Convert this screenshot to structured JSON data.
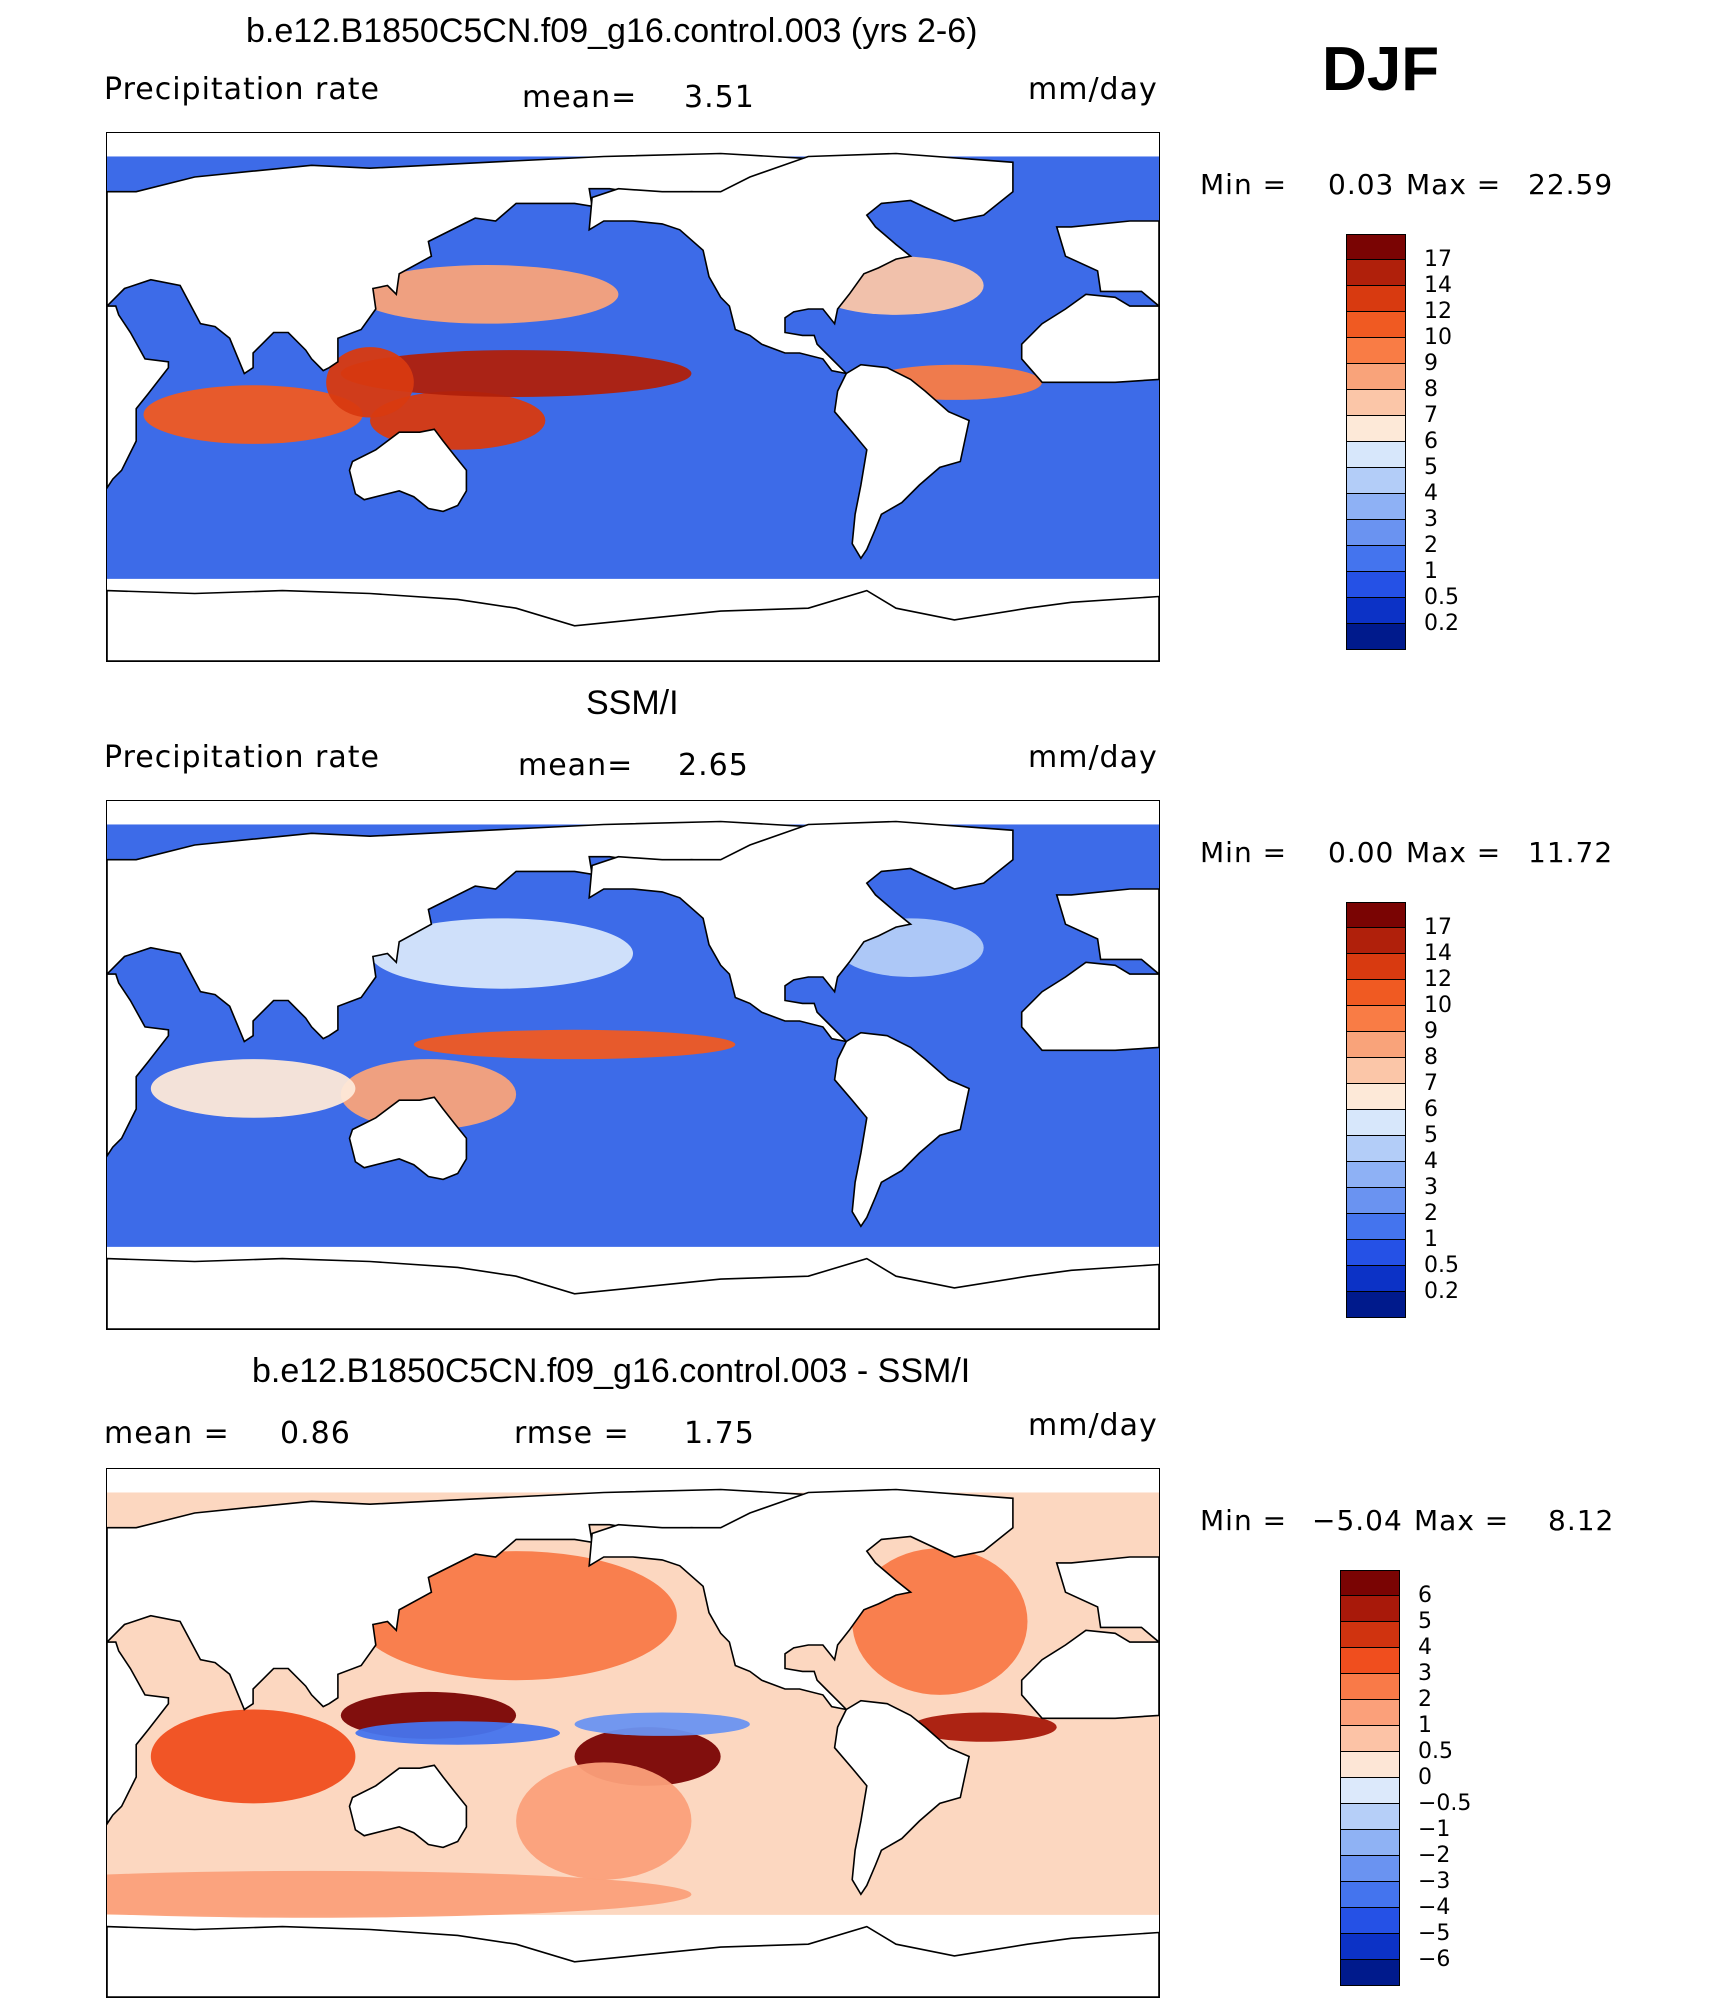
{
  "season": "DJF",
  "panels": [
    {
      "id": "model",
      "title": "b.e12.B1850C5CN.f09_g16.control.003 (yrs 2-6)",
      "left_label": "Precipitation  rate",
      "center_label": "mean=",
      "center_value": "3.51",
      "right_label": "mm/day",
      "min_label": "Min  =",
      "min_value": "0.03",
      "max_label": "Max  =",
      "max_value": "22.59"
    },
    {
      "id": "obs",
      "title": "SSM/I",
      "left_label": "Precipitation  rate",
      "center_label": "mean=",
      "center_value": "2.65",
      "right_label": "mm/day",
      "min_label": "Min  =",
      "min_value": "0.00",
      "max_label": "Max  =",
      "max_value": "11.72"
    },
    {
      "id": "diff",
      "title": "b.e12.B1850C5CN.f09_g16.control.003 - SSM/I",
      "left_label": "mean  =",
      "left_value": "0.86",
      "center_label": "rmse  =",
      "center_value": "1.75",
      "right_label": "mm/day",
      "min_label": "Min  =",
      "min_value": "−5.04",
      "max_label": "Max  =",
      "max_value": "8.12"
    }
  ],
  "colorbars": {
    "precip": {
      "levels": [
        "17",
        "14",
        "12",
        "10",
        "9",
        "8",
        "7",
        "6",
        "5",
        "4",
        "3",
        "2",
        "1",
        "0.5",
        "0.2"
      ],
      "colors": [
        "#7a0403",
        "#b0200b",
        "#d83a10",
        "#f05a22",
        "#f97c45",
        "#f9a37a",
        "#fbc6a8",
        "#fde9d8",
        "#d7e7fb",
        "#b3cdf8",
        "#8eb1f5",
        "#6a93f1",
        "#4474ee",
        "#2551e6",
        "#0c32c6",
        "#001a8c"
      ]
    },
    "diff": {
      "levels": [
        "6",
        "5",
        "4",
        "3",
        "2",
        "1",
        "0.5",
        "0",
        "−0.5",
        "−1",
        "−2",
        "−3",
        "−4",
        "−5",
        "−6"
      ],
      "colors": [
        "#7a0403",
        "#a8190a",
        "#d0330f",
        "#f04e1e",
        "#f97a48",
        "#fba07a",
        "#fcc3a6",
        "#fde6d6",
        "#dce9fb",
        "#b6cff8",
        "#8fb2f4",
        "#6a93f1",
        "#4474ee",
        "#2551e6",
        "#0c32c6",
        "#001a8c"
      ]
    }
  },
  "map_fields": {
    "model": [
      {
        "lon": 0,
        "lat": -2,
        "w": 70,
        "h": 14,
        "v": 9
      },
      {
        "lon": 80,
        "lat": -6,
        "w": 75,
        "h": 10,
        "v": 10
      },
      {
        "lon": 150,
        "lat": -8,
        "w": 60,
        "h": 10,
        "v": 12
      },
      {
        "lon": 170,
        "lat": 8,
        "w": 120,
        "h": 8,
        "v": 14
      },
      {
        "lon": 160,
        "lat": 35,
        "w": 90,
        "h": 10,
        "v": 8
      },
      {
        "lon": 300,
        "lat": 38,
        "w": 60,
        "h": 10,
        "v": 7
      },
      {
        "lon": 320,
        "lat": 5,
        "w": 60,
        "h": 6,
        "v": 9
      },
      {
        "lon": 120,
        "lat": 5,
        "w": 30,
        "h": 12,
        "v": 12
      }
    ],
    "obs": [
      {
        "lon": 140,
        "lat": -10,
        "w": 60,
        "h": 12,
        "v": 8
      },
      {
        "lon": 190,
        "lat": 7,
        "w": 110,
        "h": 5,
        "v": 10
      },
      {
        "lon": 80,
        "lat": -8,
        "w": 70,
        "h": 10,
        "v": 6
      },
      {
        "lon": 165,
        "lat": 38,
        "w": 90,
        "h": 12,
        "v": 5
      },
      {
        "lon": 305,
        "lat": 40,
        "w": 50,
        "h": 10,
        "v": 4
      }
    ],
    "diff": [
      {
        "lon": 140,
        "lat": 6,
        "w": 60,
        "h": 8,
        "v": 6
      },
      {
        "lon": 215,
        "lat": -8,
        "w": 50,
        "h": 10,
        "v": 6
      },
      {
        "lon": 170,
        "lat": 40,
        "w": 110,
        "h": 22,
        "v": 2
      },
      {
        "lon": 315,
        "lat": 38,
        "w": 60,
        "h": 25,
        "v": 2
      },
      {
        "lon": 80,
        "lat": -8,
        "w": 70,
        "h": 16,
        "v": 3
      },
      {
        "lon": 150,
        "lat": 0,
        "w": 70,
        "h": 4,
        "v": -4
      },
      {
        "lon": 220,
        "lat": 3,
        "w": 60,
        "h": 4,
        "v": -3
      },
      {
        "lon": 330,
        "lat": 2,
        "w": 50,
        "h": 5,
        "v": 5
      },
      {
        "lon": 100,
        "lat": -55,
        "w": 260,
        "h": 8,
        "v": 1
      },
      {
        "lon": 200,
        "lat": -30,
        "w": 60,
        "h": 20,
        "v": 1
      }
    ]
  }
}
